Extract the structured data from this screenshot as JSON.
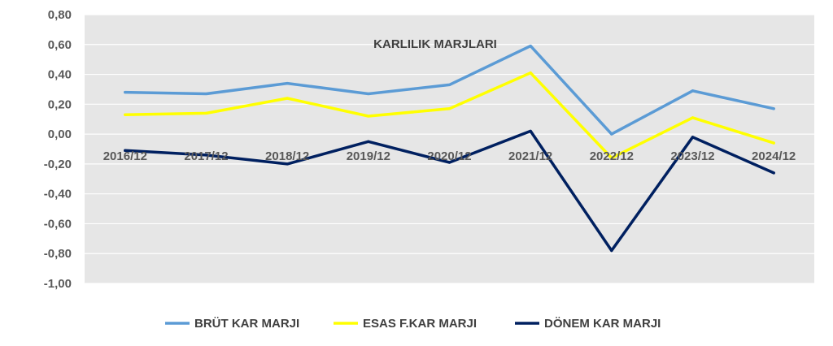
{
  "chart_data": {
    "type": "line",
    "title": "KARLILIK MARJLARI",
    "categories": [
      "2016/12",
      "2017/12",
      "2018/12",
      "2019/12",
      "2020/12",
      "2021/12",
      "2022/12",
      "2023/12",
      "2024/12"
    ],
    "ylim": [
      -1.0,
      0.8
    ],
    "yticks": [
      "0,80",
      "0,60",
      "0,40",
      "0,20",
      "0,00",
      "-0,20",
      "-0,40",
      "-0,60",
      "-0,80",
      "-1,00"
    ],
    "ytick_values": [
      0.8,
      0.6,
      0.4,
      0.2,
      0.0,
      -0.2,
      -0.4,
      -0.6,
      -0.8,
      -1.0
    ],
    "grid": true,
    "legend_position": "bottom",
    "plot_background": "#e6e6e6",
    "series": [
      {
        "name": "BRÜT KAR MARJI",
        "color": "#5b9bd5",
        "values": [
          0.28,
          0.27,
          0.34,
          0.27,
          0.33,
          0.59,
          0.0,
          0.29,
          0.17
        ]
      },
      {
        "name": "ESAS F.KAR MARJI",
        "color": "#ffff00",
        "values": [
          0.13,
          0.14,
          0.24,
          0.12,
          0.17,
          0.41,
          -0.16,
          0.11,
          -0.06
        ]
      },
      {
        "name": "DÖNEM KAR MARJI",
        "color": "#002060",
        "values": [
          -0.11,
          -0.14,
          -0.2,
          -0.05,
          -0.19,
          0.02,
          -0.78,
          -0.02,
          -0.26
        ]
      }
    ]
  }
}
